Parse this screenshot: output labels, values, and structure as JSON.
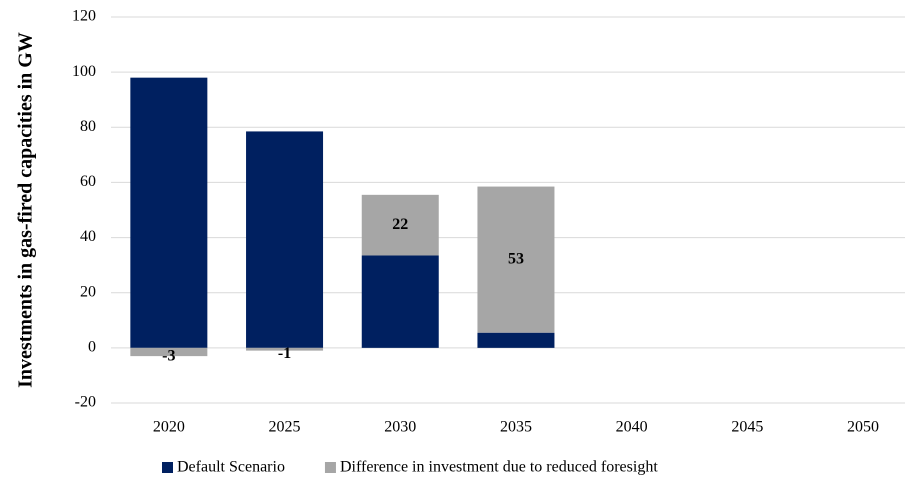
{
  "chart_data": {
    "type": "stacked_bar",
    "y_label": "Investments in gas-fired capacities in GW",
    "categories": [
      "2020",
      "2025",
      "2030",
      "2035",
      "2040",
      "2045",
      "2050"
    ],
    "series": [
      {
        "name": "Default Scenario",
        "color": "#002060",
        "values": [
          98,
          78.5,
          33.5,
          5.5,
          null,
          null,
          null
        ]
      },
      {
        "name": "Difference in investment due to reduced foresight",
        "color": "#a6a6a6",
        "values": [
          -3,
          -1,
          22,
          53,
          null,
          null,
          null
        ],
        "show_labels": true
      }
    ],
    "ylim": [
      -20,
      120
    ],
    "yticks": [
      -20,
      0,
      20,
      40,
      60,
      80,
      100,
      120
    ],
    "grid": true,
    "legend": "bottom"
  }
}
